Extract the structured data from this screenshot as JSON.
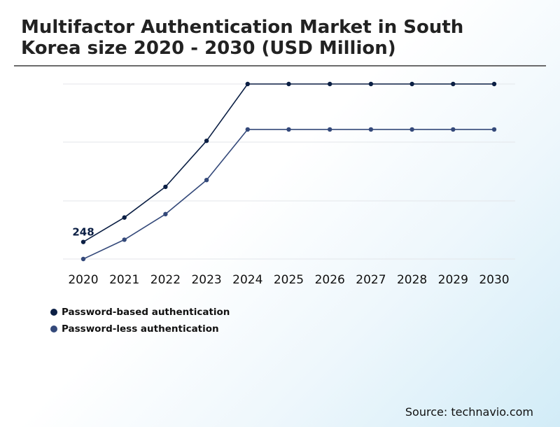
{
  "chart_data": {
    "type": "line",
    "title": "Multifactor Authentication Market in South Korea size 2020 - 2030 (USD Million)",
    "xlabel": "",
    "ylabel": "",
    "categories": [
      "2020",
      "2021",
      "2022",
      "2023",
      "2024",
      "2025",
      "2026",
      "2027",
      "2028",
      "2029",
      "2030"
    ],
    "ylim": [
      220,
      550
    ],
    "grid": true,
    "legend_position": "bottom-left",
    "series": [
      {
        "name": "Password-based authentication",
        "color": "#0b1f44",
        "values": [
          248,
          291,
          345,
          426,
          526,
          526,
          526,
          526,
          526,
          526,
          526
        ]
      },
      {
        "name": "Password-less authentication",
        "color": "#34497a",
        "values": [
          218,
          252,
          297,
          357,
          446,
          446,
          446,
          446,
          446,
          446,
          446
        ]
      }
    ],
    "annotations": [
      {
        "series": 0,
        "index": 0,
        "text": "248"
      }
    ],
    "source": "Source: technavio.com"
  }
}
